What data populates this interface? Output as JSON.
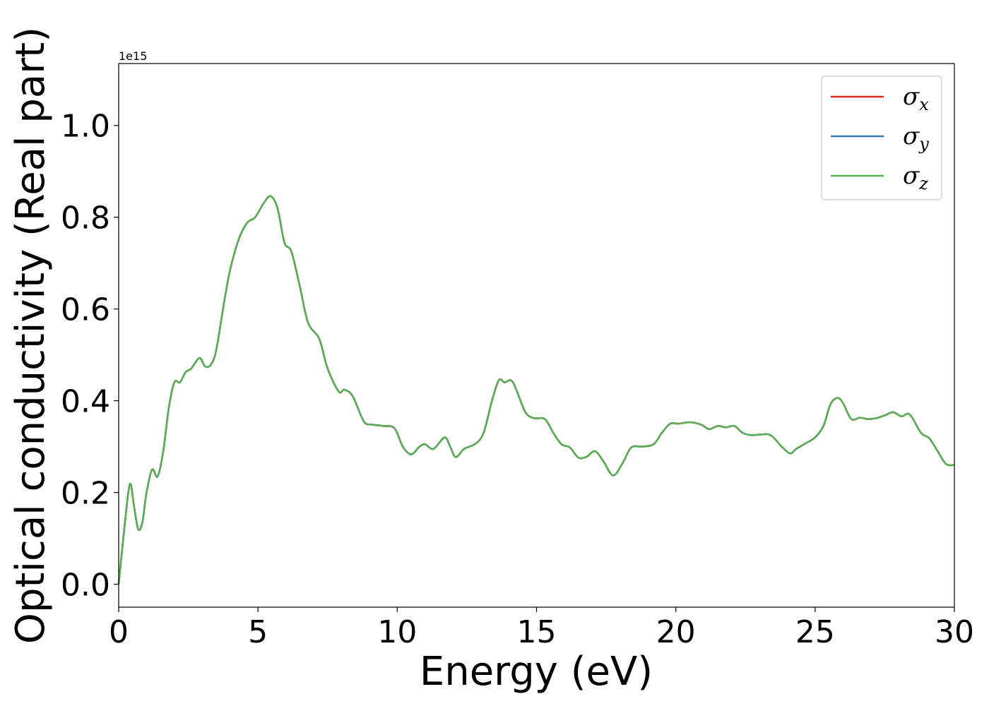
{
  "chart_data": {
    "type": "line",
    "xlabel": "Energy (eV)",
    "ylabel": "Optical conductivity (Real part)",
    "y_offset_text": "1e15",
    "xlim": [
      0,
      30
    ],
    "ylim": [
      -0.05,
      1.135
    ],
    "xticks": [
      0,
      5,
      10,
      15,
      20,
      25,
      30
    ],
    "xtick_labels": [
      "0",
      "5",
      "10",
      "15",
      "20",
      "25",
      "30"
    ],
    "yticks": [
      0.0,
      0.2,
      0.4,
      0.6,
      0.8,
      1.0
    ],
    "ytick_labels": [
      "0.0",
      "0.2",
      "0.4",
      "0.6",
      "0.8",
      "1.0"
    ],
    "legend_position": "top-right",
    "grid": false,
    "series": [
      {
        "name": "σ",
        "subscript": "x",
        "color": "#d62728",
        "x": "shared",
        "values": "shared"
      },
      {
        "name": "σ",
        "subscript": "y",
        "color": "#3a7fb5",
        "x": "shared",
        "values": "shared"
      },
      {
        "name": "σ",
        "subscript": "z",
        "color": "#5aad53",
        "x": "shared",
        "values": "shared"
      }
    ],
    "x": [
      0,
      0.2,
      0.4,
      0.55,
      0.7,
      0.85,
      1.0,
      1.2,
      1.4,
      1.6,
      1.8,
      2.0,
      2.2,
      2.4,
      2.6,
      2.9,
      3.1,
      3.3,
      3.5,
      3.8,
      4.0,
      4.3,
      4.6,
      4.9,
      5.2,
      5.45,
      5.7,
      5.95,
      6.2,
      6.5,
      6.8,
      7.2,
      7.5,
      7.9,
      8.1,
      8.4,
      8.8,
      9.1,
      9.5,
      9.9,
      10.2,
      10.5,
      10.8,
      11.0,
      11.3,
      11.7,
      11.9,
      12.1,
      12.4,
      12.8,
      13.1,
      13.4,
      13.65,
      13.85,
      14.1,
      14.3,
      14.6,
      14.9,
      15.3,
      15.6,
      15.9,
      16.2,
      16.5,
      16.8,
      17.1,
      17.4,
      17.75,
      18.1,
      18.4,
      18.8,
      19.2,
      19.5,
      19.8,
      20.1,
      20.5,
      20.9,
      21.2,
      21.5,
      21.8,
      22.1,
      22.4,
      22.7,
      23.0,
      23.4,
      23.8,
      24.1,
      24.3,
      24.6,
      25.0,
      25.3,
      25.55,
      25.8,
      26.0,
      26.3,
      26.6,
      26.9,
      27.2,
      27.5,
      27.8,
      28.1,
      28.4,
      28.8,
      29.1,
      29.4,
      29.7,
      30.0
    ],
    "values": [
      0.0,
      0.12,
      0.218,
      0.17,
      0.12,
      0.135,
      0.2,
      0.25,
      0.235,
      0.29,
      0.385,
      0.44,
      0.44,
      0.462,
      0.47,
      0.493,
      0.475,
      0.478,
      0.51,
      0.62,
      0.685,
      0.75,
      0.787,
      0.8,
      0.83,
      0.846,
      0.82,
      0.745,
      0.725,
      0.65,
      0.57,
      0.535,
      0.47,
      0.42,
      0.424,
      0.41,
      0.355,
      0.348,
      0.345,
      0.34,
      0.3,
      0.283,
      0.3,
      0.305,
      0.295,
      0.32,
      0.3,
      0.277,
      0.295,
      0.306,
      0.33,
      0.4,
      0.445,
      0.44,
      0.444,
      0.42,
      0.375,
      0.362,
      0.36,
      0.33,
      0.305,
      0.298,
      0.276,
      0.278,
      0.29,
      0.268,
      0.237,
      0.265,
      0.298,
      0.3,
      0.305,
      0.33,
      0.35,
      0.35,
      0.353,
      0.348,
      0.338,
      0.345,
      0.342,
      0.345,
      0.33,
      0.325,
      0.326,
      0.325,
      0.3,
      0.285,
      0.294,
      0.305,
      0.32,
      0.345,
      0.392,
      0.406,
      0.395,
      0.36,
      0.363,
      0.36,
      0.362,
      0.368,
      0.375,
      0.366,
      0.37,
      0.33,
      0.318,
      0.29,
      0.262,
      0.26
    ]
  }
}
